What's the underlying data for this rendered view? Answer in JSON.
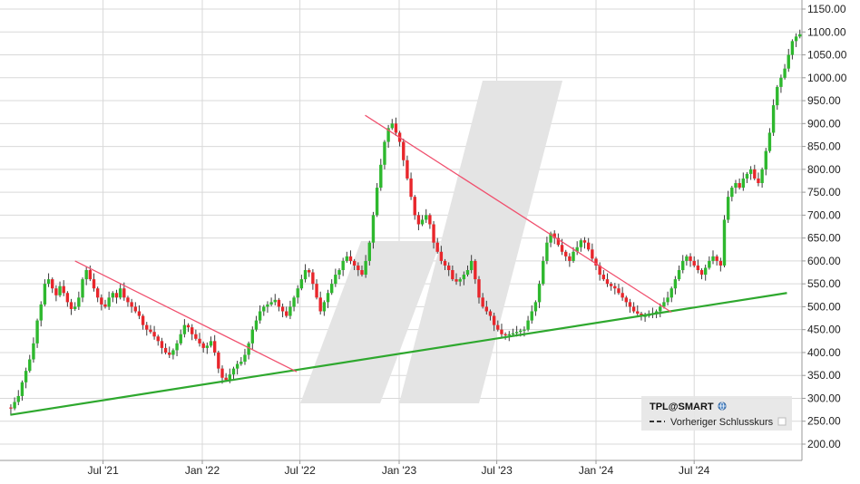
{
  "chart_data": {
    "type": "candlestick",
    "title": "",
    "xlabel": "",
    "ylabel": "",
    "ylim": [
      175,
      1160
    ],
    "xlim": [
      "2021-01-01",
      "2024-12-31"
    ],
    "y_ticks": [
      200,
      250,
      300,
      350,
      400,
      450,
      500,
      550,
      600,
      650,
      700,
      750,
      800,
      850,
      900,
      950,
      1000,
      1050,
      1100,
      1150
    ],
    "y_tick_labels": [
      "200.00",
      "250.00",
      "300.00",
      "350.00",
      "400.00",
      "450.00",
      "500.00",
      "550.00",
      "600.00",
      "650.00",
      "700.00",
      "750.00",
      "800.00",
      "850.00",
      "900.00",
      "950.00",
      "1000.00",
      "1050.00",
      "1100.00",
      "1150.00"
    ],
    "x_ticks": [
      {
        "label": "Jul '21",
        "date": "2021-07-01"
      },
      {
        "label": "Jan '22",
        "date": "2022-01-01"
      },
      {
        "label": "Jul '22",
        "date": "2022-07-01"
      },
      {
        "label": "Jan '23",
        "date": "2023-01-01"
      },
      {
        "label": "Jul '23",
        "date": "2023-07-01"
      },
      {
        "label": "Jan '24",
        "date": "2024-01-01"
      },
      {
        "label": "Jul '24",
        "date": "2024-07-01"
      }
    ],
    "grid": true,
    "colors": {
      "up": "#2eb82e",
      "down": "#e8262b",
      "support": "#2ea82e",
      "resistance": "#f0506e",
      "grid": "#d9d9d9",
      "watermark": "#e4e4e4"
    },
    "series": [
      {
        "name": "TPL@SMART",
        "kind": "weekly",
        "closes": [
          280,
          278,
          292,
          305,
          335,
          360,
          385,
          420,
          470,
          505,
          550,
          560,
          540,
          525,
          545,
          530,
          510,
          495,
          500,
          520,
          560,
          580,
          560,
          540,
          520,
          505,
          500,
          520,
          530,
          520,
          540,
          520,
          510,
          500,
          490,
          480,
          460,
          450,
          445,
          435,
          425,
          410,
          400,
          395,
          405,
          420,
          440,
          460,
          455,
          440,
          430,
          420,
          410,
          415,
          425,
          400,
          365,
          345,
          340,
          352,
          365,
          375,
          380,
          395,
          420,
          450,
          470,
          490,
          500,
          505,
          510,
          515,
          500,
          490,
          480,
          500,
          520,
          540,
          560,
          580,
          575,
          550,
          520,
          490,
          510,
          530,
          550,
          570,
          580,
          600,
          610,
          600,
          590,
          580,
          570,
          600,
          640,
          700,
          760,
          810,
          860,
          890,
          900,
          880,
          860,
          820,
          780,
          740,
          700,
          680,
          690,
          700,
          680,
          640,
          620,
          600,
          590,
          580,
          560,
          555,
          560,
          570,
          580,
          600,
          560,
          520,
          500,
          490,
          480,
          460,
          450,
          440,
          438,
          440,
          442,
          445,
          448,
          450,
          470,
          490,
          510,
          550,
          600,
          640,
          660,
          650,
          635,
          620,
          610,
          600,
          620,
          630,
          645,
          640,
          625,
          605,
          590,
          570,
          560,
          550,
          545,
          540,
          530,
          520,
          510,
          500,
          490,
          485,
          480,
          480,
          482,
          485,
          490,
          500,
          510,
          520,
          540,
          560,
          580,
          600,
          610,
          600,
          590,
          580,
          570,
          585,
          600,
          610,
          600,
          590,
          690,
          740,
          760,
          770,
          760,
          780,
          790,
          800,
          780,
          770,
          800,
          840,
          880,
          940,
          980,
          1000,
          1020,
          1050,
          1080,
          1090,
          1095
        ]
      },
      {
        "name": "Vorheriger Schlusskurs",
        "kind": "reference"
      }
    ],
    "trendlines": [
      {
        "name": "support",
        "from": {
          "date": "2021-01-10",
          "value": 264
        },
        "to": {
          "date": "2024-12-20",
          "value": 530
        }
      },
      {
        "name": "resistance-1",
        "from": {
          "date": "2021-05-10",
          "value": 600
        },
        "to": {
          "date": "2022-06-25",
          "value": 358
        }
      },
      {
        "name": "resistance-2",
        "from": {
          "date": "2022-10-30",
          "value": 918
        },
        "to": {
          "date": "2024-05-20",
          "value": 488
        }
      }
    ],
    "legend": {
      "placement": "bottom-right",
      "title": "TPL@SMART",
      "entries": [
        "Vorheriger Schlusskurs"
      ]
    }
  }
}
